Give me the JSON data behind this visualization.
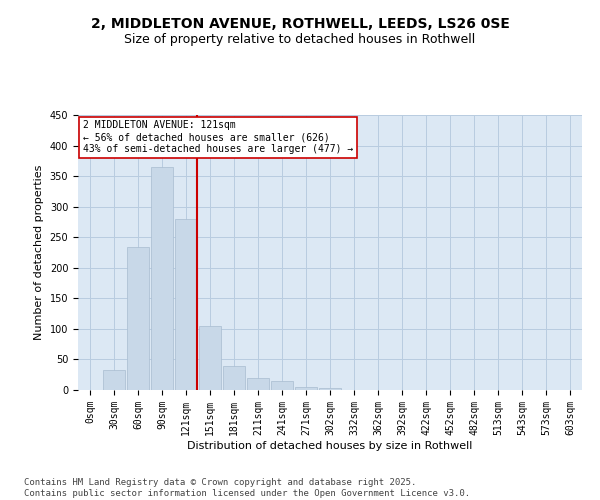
{
  "title_line1": "2, MIDDLETON AVENUE, ROTHWELL, LEEDS, LS26 0SE",
  "title_line2": "Size of property relative to detached houses in Rothwell",
  "xlabel": "Distribution of detached houses by size in Rothwell",
  "ylabel": "Number of detached properties",
  "bar_labels": [
    "0sqm",
    "30sqm",
    "60sqm",
    "90sqm",
    "121sqm",
    "151sqm",
    "181sqm",
    "211sqm",
    "241sqm",
    "271sqm",
    "302sqm",
    "332sqm",
    "362sqm",
    "392sqm",
    "422sqm",
    "452sqm",
    "482sqm",
    "513sqm",
    "543sqm",
    "573sqm",
    "603sqm"
  ],
  "bar_values": [
    0,
    32,
    234,
    365,
    280,
    105,
    40,
    20,
    15,
    5,
    4,
    0,
    0,
    0,
    0,
    0,
    0,
    0,
    0,
    0,
    0
  ],
  "bar_color": "#c8d8e8",
  "bar_edge_color": "#a8bcd0",
  "grid_color": "#b8cce0",
  "background_color": "#dce8f4",
  "vline_x_index": 4,
  "vline_color": "#cc0000",
  "annotation_text": "2 MIDDLETON AVENUE: 121sqm\n← 56% of detached houses are smaller (626)\n43% of semi-detached houses are larger (477) →",
  "annotation_box_facecolor": "#ffffff",
  "annotation_box_edgecolor": "#cc0000",
  "ylim": [
    0,
    450
  ],
  "yticks": [
    0,
    50,
    100,
    150,
    200,
    250,
    300,
    350,
    400,
    450
  ],
  "footer_text": "Contains HM Land Registry data © Crown copyright and database right 2025.\nContains public sector information licensed under the Open Government Licence v3.0.",
  "title_fontsize": 10,
  "subtitle_fontsize": 9,
  "axis_label_fontsize": 8,
  "tick_fontsize": 7,
  "annotation_fontsize": 7,
  "footer_fontsize": 6.5
}
